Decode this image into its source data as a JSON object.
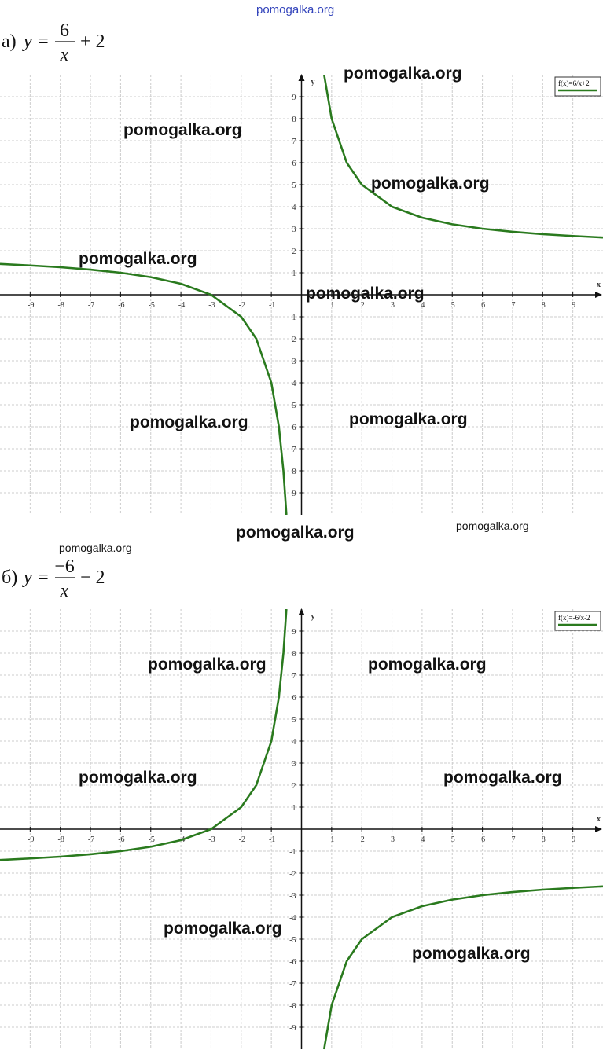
{
  "chart_data": [
    {
      "type": "line",
      "title_prefix": "а)",
      "title_lhs": "y =",
      "numerator": "6",
      "denominator": "x",
      "title_rhs": "+ 2",
      "xlabel": "x",
      "ylabel": "y",
      "x": [
        -10,
        -9,
        -8,
        -7,
        -6,
        -5,
        -4,
        -3,
        -2,
        -1.5,
        -1,
        -0.75,
        -0.6,
        -0.5,
        0,
        0.75,
        1,
        1.5,
        2,
        3,
        4,
        5,
        6,
        7,
        8,
        9,
        10
      ],
      "series": [
        {
          "name": "f(x)=6/x+2",
          "color": "#2a7a1e",
          "values": [
            1.4,
            1.33,
            1.25,
            1.14,
            1,
            0.8,
            0.5,
            0,
            -1,
            -2,
            -4,
            -6,
            -8,
            -10,
            null,
            10,
            8,
            6,
            5,
            4,
            3.5,
            3.2,
            3,
            2.86,
            2.75,
            2.67,
            2.6
          ]
        }
      ],
      "xlim": [
        -10,
        10
      ],
      "ylim": [
        -10,
        10
      ],
      "xticks": [
        -9,
        -8,
        -7,
        -6,
        -5,
        -4,
        -3,
        -2,
        -1,
        1,
        2,
        3,
        4,
        5,
        6,
        7,
        8,
        9
      ],
      "yticks": [
        -9,
        -8,
        -7,
        -6,
        -5,
        -4,
        -3,
        -2,
        -1,
        1,
        2,
        3,
        4,
        5,
        6,
        7,
        8,
        9
      ],
      "grid": true,
      "legend": "upper right"
    },
    {
      "type": "line",
      "title_prefix": "б)",
      "title_lhs": "y =",
      "numerator": "−6",
      "denominator": "x",
      "title_rhs": "− 2",
      "xlabel": "x",
      "ylabel": "y",
      "x": [
        -10,
        -9,
        -8,
        -7,
        -6,
        -5,
        -4,
        -3,
        -2,
        -1.5,
        -1,
        -0.75,
        -0.6,
        -0.5,
        0,
        0.75,
        1,
        1.5,
        2,
        3,
        4,
        5,
        6,
        7,
        8,
        9,
        10
      ],
      "series": [
        {
          "name": "f(x)=-6/x-2",
          "color": "#2a7a1e",
          "values": [
            -1.4,
            -1.33,
            -1.25,
            -1.14,
            -1,
            -0.8,
            -0.5,
            0,
            1,
            2,
            4,
            6,
            8,
            10,
            null,
            -10,
            -8,
            -6,
            -5,
            -4,
            -3.5,
            -3.2,
            -3,
            -2.86,
            -2.75,
            -2.67,
            -2.6
          ]
        }
      ],
      "xlim": [
        -10,
        10
      ],
      "ylim": [
        -10,
        10
      ],
      "xticks": [
        -9,
        -8,
        -7,
        -6,
        -5,
        -4,
        -3,
        -2,
        -1,
        1,
        2,
        3,
        4,
        5,
        6,
        7,
        8,
        9
      ],
      "yticks": [
        -9,
        -8,
        -7,
        -6,
        -5,
        -4,
        -3,
        -2,
        -1,
        1,
        2,
        3,
        4,
        5,
        6,
        7,
        8,
        9
      ],
      "grid": true,
      "legend": "upper right"
    }
  ],
  "watermarks": [
    "pomogalka.org",
    "pomogalka.org",
    "pomogalka.org",
    "pomogalka.org",
    "pomogalka.org",
    "pomogalka.org",
    "pomogalka.org",
    "pomogalka.org",
    "pomogalka.org",
    "pomogalka.org",
    "pomogalka.org",
    "pomogalka.org",
    "pomogalka.org",
    "pomogalka.org",
    "pomogalka.org",
    "pomogalka.org",
    "pomogalka.org"
  ]
}
